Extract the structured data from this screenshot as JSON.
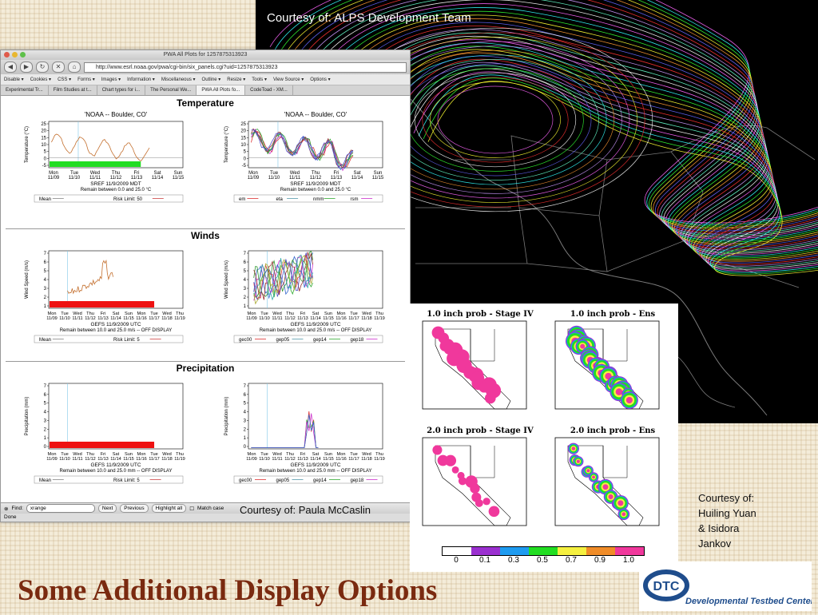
{
  "slide": {
    "title": "Some Additional Display Options",
    "map_credit": "Courtesy of: ALPS Development Team",
    "browser_credit": "Courtesy of: Paula McCaslin",
    "precip_credit": [
      "Courtesy of:",
      "Huiling Yuan",
      "& Isidora",
      "Jankov"
    ],
    "logo_text": "Developmental Testbed Center",
    "logo_abbrev": "DTC"
  },
  "browser": {
    "window_title": "PWA All Plots for 1257875313923",
    "url": "http://www.esrl.noaa.gov/pwa/cgi-bin/six_panels.cgi?uid=1257875313923",
    "toolbar_items": [
      "Disable",
      "Cookies",
      "CSS",
      "Forms",
      "Images",
      "Information",
      "Miscellaneous",
      "Outline",
      "Resize",
      "Tools",
      "View Source",
      "Options"
    ],
    "tabs": [
      "Experimental Tr...",
      "Film Studies at t...",
      "Chart types for i...",
      "The Personal We...",
      "PWA All Plots fo...",
      "CodeToad - XM..."
    ],
    "active_tab": 4,
    "find_label": "Find:",
    "find_value": "xrange",
    "find_next": "Next",
    "find_previous": "Previous",
    "find_highlight": "Highlight all",
    "find_match_case": "Match case",
    "status": "Done"
  },
  "sections": {
    "temperature": {
      "title": "Temperature",
      "left": {
        "plot_title": "'NOAA -- Boulder, CO'",
        "ylabel": "Temperature (°C)",
        "yticks": [
          "25",
          "20",
          "15",
          "10",
          "5",
          "0",
          "-5"
        ],
        "xticks": [
          "Mon\n11/09",
          "Tue\n11/10",
          "Wed\n11/11",
          "Thu\n11/12",
          "Fri\n11/13",
          "Sat\n11/14",
          "Sun\n11/15"
        ],
        "caption1": "SREF  11/9/2009 MDT",
        "caption2": "Remain between 0.0 and 25.0 °C",
        "legend": [
          "Mean",
          "Risk Limit: 50"
        ]
      },
      "right": {
        "plot_title": "'NOAA -- Boulder, CO'",
        "ylabel": "Temperature (°C)",
        "yticks": [
          "25",
          "20",
          "15",
          "10",
          "5",
          "0",
          "-5"
        ],
        "xticks": [
          "Mon\n11/09",
          "Tue\n11/10",
          "Wed\n11/11",
          "Thu\n11/12",
          "Fri\n11/13",
          "Sat\n11/14",
          "Sun\n11/15"
        ],
        "caption1": "SREF  11/9/2009 MDT",
        "caption2": "Remain between 0.0 and 25.0 °C",
        "legend": [
          "em",
          "eta",
          "nmm",
          "rsm"
        ]
      }
    },
    "winds": {
      "title": "Winds",
      "left": {
        "ylabel": "Wind Speed (m/s)",
        "yticks": [
          "7",
          "6",
          "5",
          "4",
          "3",
          "2",
          "1"
        ],
        "xticks": "Mon Tue Wed Thu Fri Sat Sun Mon Tue Wed Thu",
        "xdates": "11/09 11/10 11/11 11/12 11/13 11/14 11/15 11/16 11/17 11/18 11/19",
        "caption1": "GEFS  11/9/2009 UTC",
        "caption2": "Remain between 10.0 and 25.0 m/s -- OFF DISPLAY",
        "legend": [
          "Mean",
          "Risk Limit: 5"
        ]
      },
      "right": {
        "ylabel": "Wind Speed (m/s)",
        "yticks": [
          "7",
          "6",
          "5",
          "4",
          "3",
          "2",
          "1"
        ],
        "xticks": "Mon Tue Wed Thu Fri Sat Sun Mon Tue Wed Thu",
        "xdates": "11/09 11/10 11/11 11/12 11/13 11/14 11/15 11/16 11/17 11/18 11/19",
        "caption1": "GEFS  11/9/2009 UTC",
        "caption2": "Remain between 10.0 and 25.0 m/s -- OFF DISPLAY",
        "legend": [
          "gec00",
          "gep05",
          "gep14",
          "gep18"
        ]
      }
    },
    "precipitation": {
      "title": "Precipitation",
      "left": {
        "ylabel": "Precipitation (mm)",
        "yticks": [
          "7",
          "6",
          "5",
          "4",
          "3",
          "2",
          "1",
          "0"
        ],
        "xticks": "Mon Tue Wed Thu Fri Sat Sun Mon Tue Wed Thu",
        "xdates": "11/09 11/10 11/11 11/12 11/13 11/14 11/15 11/16 11/17 11/18 11/19",
        "caption1": "GEFS  11/9/2009 UTC",
        "caption2": "Remain between 10.0 and 25.0 mm -- OFF DISPLAY",
        "legend": [
          "Mean",
          "Risk Limit: 5"
        ]
      },
      "right": {
        "ylabel": "Precipitation (mm)",
        "yticks": [
          "7",
          "6",
          "5",
          "4",
          "3",
          "2",
          "1",
          "0"
        ],
        "xticks": "Mon Tue Wed Thu Fri Sat Sun Mon Tue Wed Thu",
        "xdates": "11/09 11/10 11/11 11/12 11/13 11/14 11/15 11/16 11/17 11/18 11/19",
        "caption1": "GEFS  11/9/2009 UTC",
        "caption2": "Remain between 10.0 and 25.0 mm -- OFF DISPLAY",
        "legend": [
          "gec00",
          "gep05",
          "gep14",
          "gep18"
        ]
      }
    }
  },
  "precip_panels": {
    "titles": [
      "1.0 inch prob - Stage IV",
      "1.0 inch prob - Ens",
      "2.0 inch prob - Stage IV",
      "2.0 inch prob - Ens"
    ],
    "colorbar_colors": [
      "#ffffff",
      "#9b30d0",
      "#1e9bf0",
      "#22dd22",
      "#f5f040",
      "#f08c28",
      "#f0389c"
    ],
    "colorbar_ticks": [
      "0",
      "0.1",
      "0.3",
      "0.5",
      "0.7",
      "0.9",
      "1.0"
    ]
  }
}
